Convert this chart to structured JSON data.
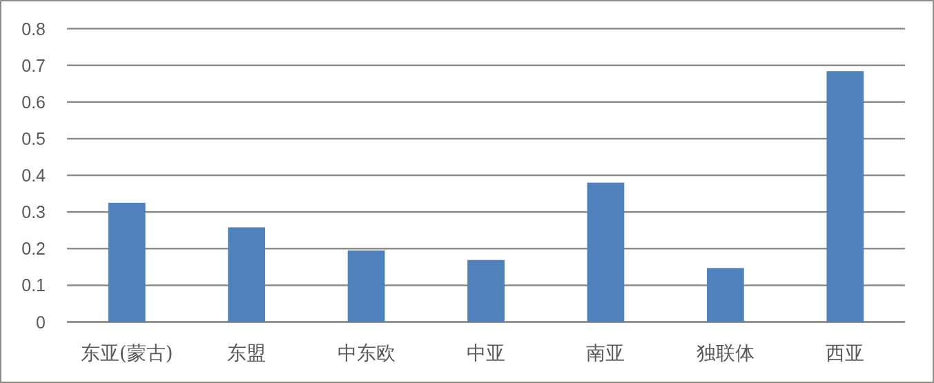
{
  "chart_data": {
    "type": "bar",
    "categories": [
      "东亚(蒙古)",
      "东盟",
      "中东欧",
      "中亚",
      "南亚",
      "独联体",
      "西亚"
    ],
    "values": [
      0.325,
      0.258,
      0.195,
      0.169,
      0.38,
      0.147,
      0.684
    ],
    "color": "#4f81bd",
    "ylim": [
      0,
      0.8
    ],
    "yticks": [
      0,
      0.1,
      0.2,
      0.3,
      0.4,
      0.5,
      0.6,
      0.7,
      0.8
    ],
    "grid": "y"
  }
}
